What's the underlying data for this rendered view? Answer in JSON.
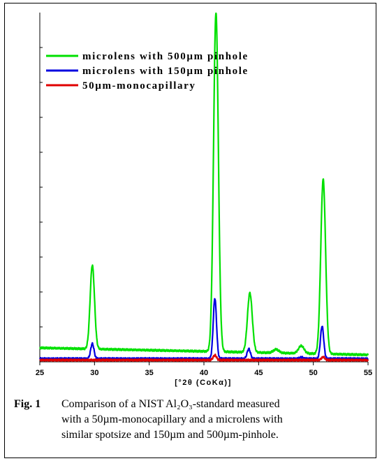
{
  "chart_data": {
    "type": "line",
    "xlabel": "[°2θ (CoKα)]",
    "ylabel": "",
    "xlim": [
      25,
      55
    ],
    "ylim": [
      0,
      100
    ],
    "x_ticks": [
      "25",
      "30",
      "35",
      "40",
      "45",
      "50",
      "55"
    ],
    "y_minor_ticks": 9,
    "legend_position": "top-left",
    "series": [
      {
        "name": "microlens with 500µm pinhole",
        "color": "#00e000",
        "baseline": 4.0,
        "end_baseline": 2.0,
        "peaks": [
          [
            29.8,
            24,
            0.2
          ],
          [
            41.1,
            97,
            0.22
          ],
          [
            44.2,
            17,
            0.22
          ],
          [
            46.6,
            1.0,
            0.25
          ],
          [
            48.9,
            2.2,
            0.25
          ],
          [
            50.9,
            50,
            0.22
          ]
        ]
      },
      {
        "name": "microlens with 150µm pinhole",
        "color": "#0000e0",
        "baseline": 0.9,
        "end_baseline": 0.9,
        "peaks": [
          [
            29.8,
            4.3,
            0.15
          ],
          [
            41.0,
            17.3,
            0.15
          ],
          [
            44.1,
            2.8,
            0.15
          ],
          [
            48.9,
            0.4,
            0.15
          ],
          [
            50.8,
            9.3,
            0.15
          ]
        ]
      },
      {
        "name": "50µm-monocapillary",
        "color": "#e00000",
        "baseline": 0.5,
        "end_baseline": 0.5,
        "peaks": [
          [
            41.0,
            1.4,
            0.15
          ],
          [
            50.9,
            0.9,
            0.15
          ]
        ]
      }
    ]
  },
  "caption": {
    "fig_label": "Fig. 1",
    "line1": "Comparison of a NIST Al₂O₃-standard measured",
    "line2": "with a 50µm-monocapillary and a microlens with",
    "line3": "similar spotsize and 150µm and 500µm-pinhole."
  }
}
